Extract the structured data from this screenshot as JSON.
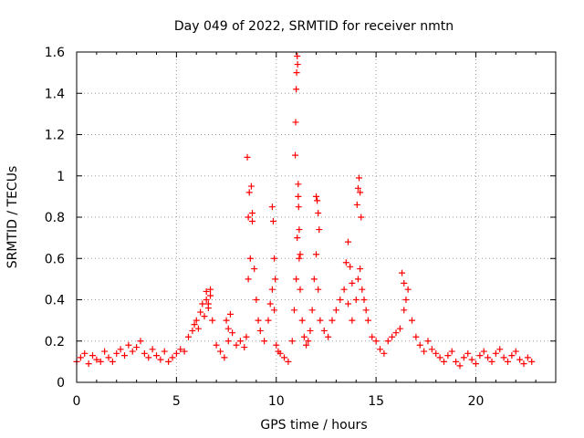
{
  "chart_data": {
    "type": "scatter",
    "title": "Day 049 of 2022, SRMTID for receiver nmtn",
    "xlabel": "GPS time / hours",
    "ylabel": "SRMTID / TECUs",
    "xlim": [
      0,
      24
    ],
    "ylim": [
      0,
      1.6
    ],
    "xticks": [
      0,
      5,
      10,
      15,
      20
    ],
    "xtick_labels": [
      "0",
      "5",
      "10",
      "15",
      "20"
    ],
    "yticks": [
      0,
      0.2,
      0.4,
      0.6,
      0.8,
      1.0,
      1.2,
      1.4,
      1.6
    ],
    "ytick_labels": [
      "0",
      "0.2",
      "0.4",
      "0.6",
      "0.8",
      "1",
      "1.2",
      "1.4",
      "1.6"
    ],
    "grid": true,
    "marker": "+",
    "color": "#ff0000",
    "series": [
      {
        "name": "SRMTID",
        "x": [
          0.0,
          0.2,
          0.4,
          0.6,
          0.8,
          1.0,
          1.2,
          1.4,
          1.6,
          1.8,
          2.0,
          2.2,
          2.4,
          2.6,
          2.8,
          3.0,
          3.2,
          3.4,
          3.6,
          3.8,
          4.0,
          4.2,
          4.4,
          4.6,
          4.8,
          5.0,
          5.2,
          5.4,
          5.6,
          5.8,
          5.9,
          6.0,
          6.1,
          6.2,
          6.3,
          6.4,
          6.5,
          6.6,
          6.7,
          6.8,
          7.0,
          7.2,
          7.4,
          7.6,
          7.8,
          8.0,
          8.2,
          8.4,
          8.5,
          8.6,
          8.7,
          8.8,
          8.9,
          9.0,
          9.1,
          9.2,
          9.4,
          9.6,
          9.7,
          9.8,
          9.9,
          10.0,
          10.1,
          10.2,
          10.4,
          10.6,
          10.8,
          10.9,
          11.0,
          11.05,
          11.1,
          11.15,
          11.2,
          11.3,
          11.4,
          11.5,
          11.6,
          11.7,
          11.8,
          11.9,
          12.0,
          12.1,
          12.2,
          12.4,
          12.6,
          12.8,
          13.0,
          13.2,
          13.4,
          13.6,
          13.8,
          14.0,
          14.1,
          14.2,
          14.3,
          14.4,
          14.5,
          14.6,
          14.8,
          15.0,
          15.2,
          15.4,
          15.6,
          15.8,
          16.0,
          16.2,
          16.4,
          16.6,
          16.8,
          17.0,
          17.2,
          17.4,
          17.6,
          17.8,
          18.0,
          18.2,
          18.4,
          18.6,
          18.8,
          19.0,
          19.2,
          19.4,
          19.6,
          19.8,
          20.0,
          20.2,
          20.4,
          20.6,
          20.8,
          21.0,
          21.2,
          21.4,
          21.6,
          21.8,
          22.0,
          22.2,
          22.4,
          22.6,
          22.8,
          8.55,
          8.6,
          8.65,
          8.75,
          8.8,
          10.95,
          10.97,
          11.0,
          11.02,
          11.05,
          11.07,
          11.1,
          11.12,
          11.15,
          11.2,
          9.8,
          9.85,
          9.9,
          9.95,
          12.0,
          12.05,
          12.1,
          12.15,
          14.05,
          14.1,
          14.15,
          14.2,
          14.25,
          13.5,
          13.6,
          13.7,
          13.8,
          6.5,
          6.6,
          6.7,
          16.3,
          16.4,
          16.5,
          7.5,
          7.6,
          7.7
        ],
        "y": [
          0.1,
          0.12,
          0.14,
          0.09,
          0.13,
          0.11,
          0.1,
          0.15,
          0.12,
          0.1,
          0.14,
          0.16,
          0.13,
          0.18,
          0.15,
          0.17,
          0.2,
          0.14,
          0.12,
          0.16,
          0.13,
          0.11,
          0.15,
          0.1,
          0.12,
          0.14,
          0.16,
          0.15,
          0.22,
          0.25,
          0.28,
          0.3,
          0.26,
          0.34,
          0.38,
          0.32,
          0.4,
          0.36,
          0.42,
          0.3,
          0.18,
          0.15,
          0.12,
          0.2,
          0.24,
          0.18,
          0.2,
          0.17,
          0.22,
          0.5,
          0.6,
          0.78,
          0.55,
          0.4,
          0.3,
          0.25,
          0.2,
          0.3,
          0.38,
          0.45,
          0.35,
          0.18,
          0.15,
          0.14,
          0.12,
          0.1,
          0.2,
          0.35,
          0.5,
          0.7,
          0.9,
          0.6,
          0.45,
          0.3,
          0.22,
          0.18,
          0.2,
          0.25,
          0.35,
          0.5,
          0.62,
          0.45,
          0.3,
          0.25,
          0.22,
          0.3,
          0.35,
          0.4,
          0.45,
          0.38,
          0.3,
          0.4,
          0.5,
          0.55,
          0.45,
          0.4,
          0.35,
          0.3,
          0.22,
          0.2,
          0.16,
          0.14,
          0.2,
          0.22,
          0.24,
          0.26,
          0.35,
          0.45,
          0.3,
          0.22,
          0.18,
          0.15,
          0.2,
          0.16,
          0.14,
          0.12,
          0.1,
          0.13,
          0.15,
          0.1,
          0.08,
          0.12,
          0.14,
          0.11,
          0.09,
          0.13,
          0.15,
          0.12,
          0.1,
          0.14,
          0.16,
          0.12,
          0.1,
          0.13,
          0.15,
          0.11,
          0.09,
          0.12,
          0.1,
          1.09,
          0.8,
          0.92,
          0.95,
          0.82,
          1.1,
          1.26,
          1.42,
          1.5,
          1.58,
          1.54,
          0.96,
          0.85,
          0.74,
          0.62,
          0.85,
          0.78,
          0.6,
          0.5,
          0.9,
          0.88,
          0.82,
          0.74,
          0.86,
          0.94,
          0.99,
          0.92,
          0.8,
          0.58,
          0.68,
          0.56,
          0.48,
          0.44,
          0.38,
          0.45,
          0.53,
          0.48,
          0.4,
          0.3,
          0.26,
          0.33
        ]
      }
    ]
  }
}
